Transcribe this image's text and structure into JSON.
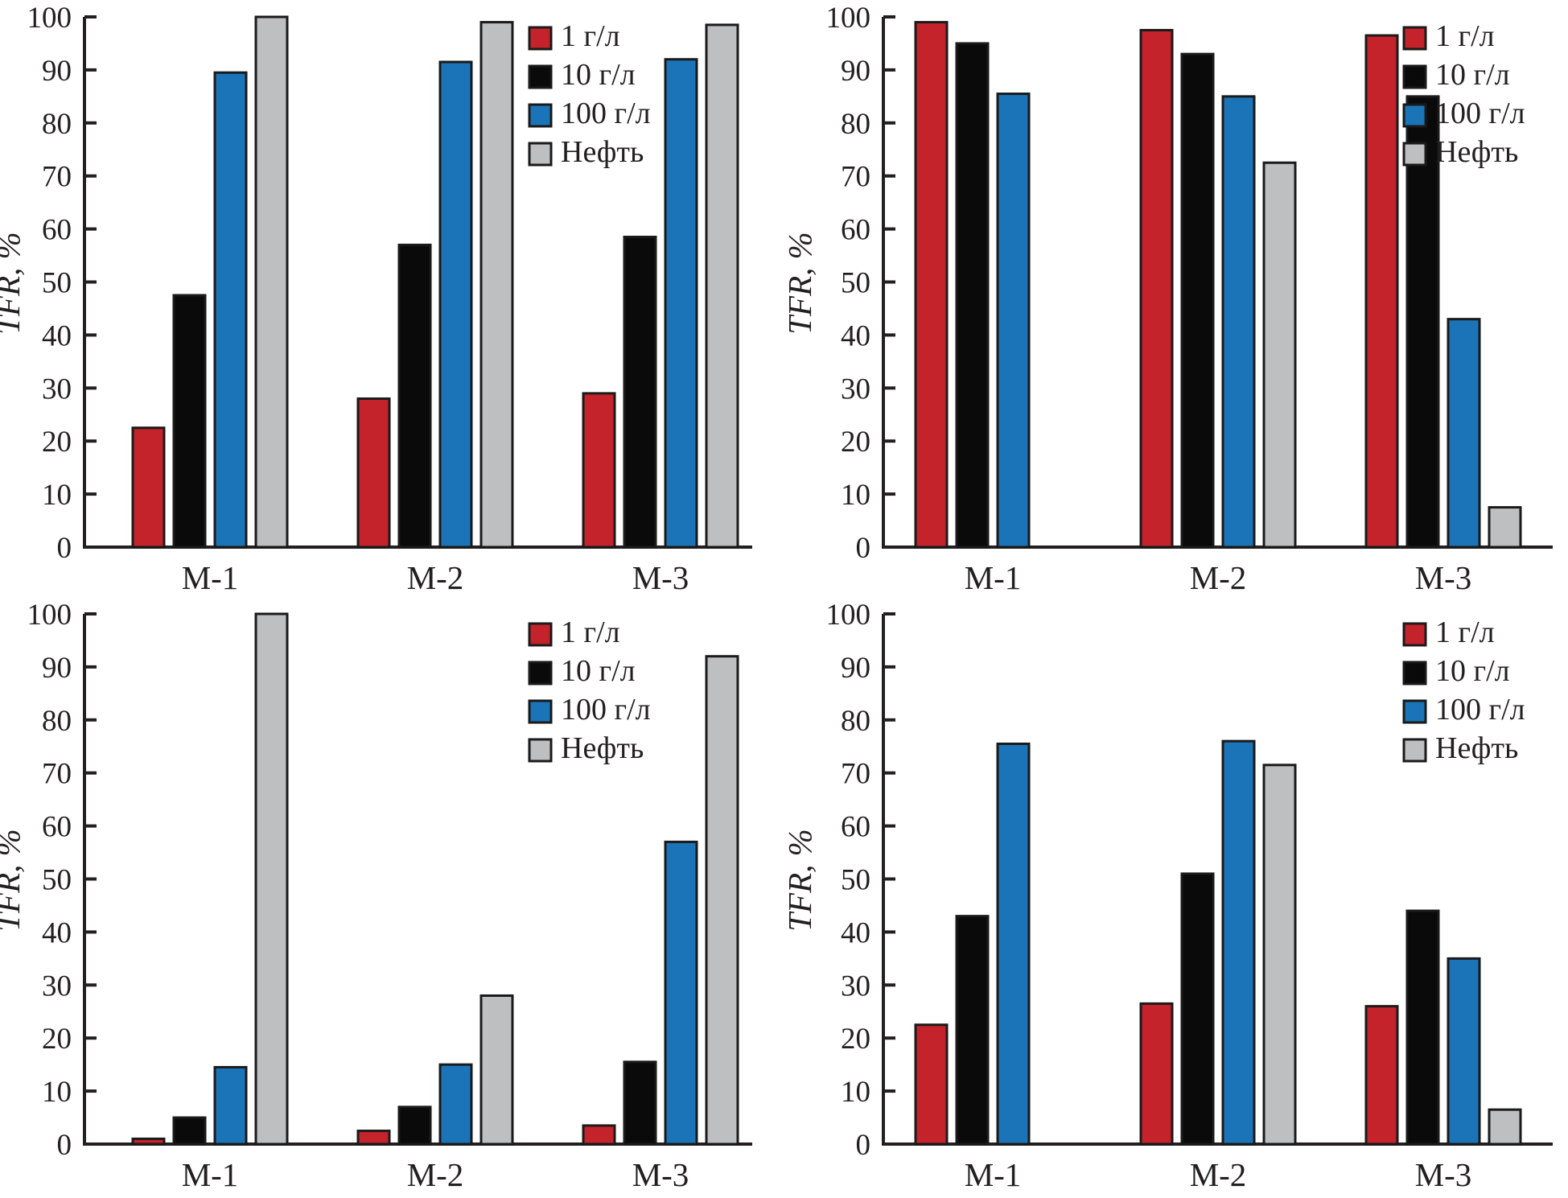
{
  "figure_title": "",
  "axis_color": "#231f20",
  "chart_data": [
    {
      "id": "top-left",
      "type": "bar",
      "ylabel": "TFR, %",
      "ylim": [
        0,
        100
      ],
      "yticks": [
        0,
        10,
        20,
        30,
        40,
        50,
        60,
        70,
        80,
        90,
        100
      ],
      "grid": false,
      "legend_position": "inset-upper-middle",
      "categories": [
        "М-1",
        "М-2",
        "М-3"
      ],
      "series": [
        {
          "name": "1 г/л",
          "color": "#c4232b",
          "values": [
            22.5,
            28,
            29
          ]
        },
        {
          "name": "10 г/л",
          "color": "#0a0a0a",
          "values": [
            47.5,
            57,
            58.5
          ]
        },
        {
          "name": "100 г/л",
          "color": "#1b74b7",
          "values": [
            89.5,
            91.5,
            92
          ]
        },
        {
          "name": "Нефть",
          "color": "#bdbfc1",
          "values": [
            100,
            99,
            98.5
          ]
        }
      ]
    },
    {
      "id": "top-right",
      "type": "bar",
      "ylabel": "TFR, %",
      "ylim": [
        0,
        100
      ],
      "yticks": [
        0,
        10,
        20,
        30,
        40,
        50,
        60,
        70,
        80,
        90,
        100
      ],
      "grid": false,
      "legend_position": "upper-right",
      "categories": [
        "М-1",
        "М-2",
        "М-3"
      ],
      "series": [
        {
          "name": "1 г/л",
          "color": "#c4232b",
          "values": [
            99,
            97.5,
            96.5
          ]
        },
        {
          "name": "10 г/л",
          "color": "#0a0a0a",
          "values": [
            95,
            93,
            85
          ]
        },
        {
          "name": "100 г/л",
          "color": "#1b74b7",
          "values": [
            85.5,
            85,
            43
          ]
        },
        {
          "name": "Нефть",
          "color": "#bdbfc1",
          "values": [
            null,
            72.5,
            7.5
          ]
        }
      ]
    },
    {
      "id": "bottom-left",
      "type": "bar",
      "ylabel": "TFR, %",
      "ylim": [
        0,
        100
      ],
      "yticks": [
        0,
        10,
        20,
        30,
        40,
        50,
        60,
        70,
        80,
        90,
        100
      ],
      "grid": false,
      "legend_position": "inset-upper-middle",
      "categories": [
        "М-1",
        "М-2",
        "М-3"
      ],
      "series": [
        {
          "name": "1 г/л",
          "color": "#c4232b",
          "values": [
            1,
            2.5,
            3.5
          ]
        },
        {
          "name": "10 г/л",
          "color": "#0a0a0a",
          "values": [
            5,
            7,
            15.5
          ]
        },
        {
          "name": "100 г/л",
          "color": "#1b74b7",
          "values": [
            14.5,
            15,
            57
          ]
        },
        {
          "name": "Нефть",
          "color": "#bdbfc1",
          "values": [
            100,
            28,
            92
          ]
        }
      ]
    },
    {
      "id": "bottom-right",
      "type": "bar",
      "ylabel": "TFR, %",
      "ylim": [
        0,
        100
      ],
      "yticks": [
        0,
        10,
        20,
        30,
        40,
        50,
        60,
        70,
        80,
        90,
        100
      ],
      "grid": false,
      "legend_position": "upper-right",
      "categories": [
        "М-1",
        "М-2",
        "М-3"
      ],
      "series": [
        {
          "name": "1 г/л",
          "color": "#c4232b",
          "values": [
            22.5,
            26.5,
            26
          ]
        },
        {
          "name": "10 г/л",
          "color": "#0a0a0a",
          "values": [
            43,
            51,
            44
          ]
        },
        {
          "name": "100 г/л",
          "color": "#1b74b7",
          "values": [
            75.5,
            76,
            35
          ]
        },
        {
          "name": "Нефть",
          "color": "#bdbfc1",
          "values": [
            null,
            71.5,
            6.5
          ]
        }
      ]
    }
  ]
}
